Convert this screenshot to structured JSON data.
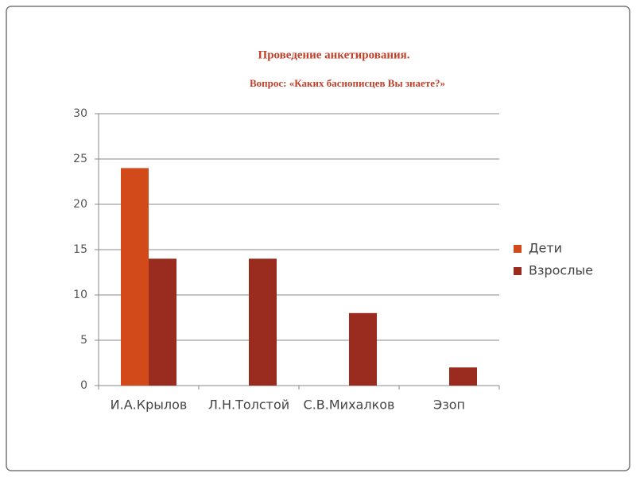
{
  "chart_data": {
    "type": "bar",
    "title": "Проведение анкетирования.",
    "subtitle": "Вопрос: «Каких баснописцев Вы знаете?»",
    "categories": [
      "И.А.Крылов",
      "Л.Н.Толстой",
      "С.В.Михалков",
      "Эзоп"
    ],
    "series": [
      {
        "name": "Дети",
        "color": "#d2491a",
        "values": [
          24,
          0,
          0,
          0
        ]
      },
      {
        "name": "Взрослые",
        "color": "#9a2b1f",
        "values": [
          14,
          14,
          8,
          2
        ]
      }
    ],
    "ylim": [
      0,
      30
    ],
    "yticks": [
      0,
      5,
      10,
      15,
      20,
      25,
      30
    ],
    "grid": true,
    "legend": "right"
  }
}
